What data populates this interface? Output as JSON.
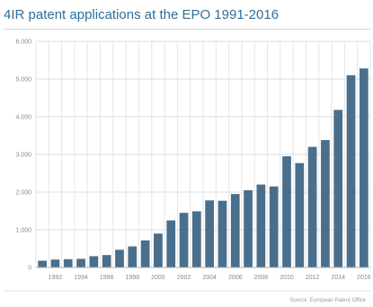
{
  "chart_data": {
    "type": "bar",
    "title": "4IR patent applications at the EPO 1991-2016",
    "source": "Source: European Patent Office",
    "categories": [
      1991,
      1992,
      1993,
      1994,
      1995,
      1996,
      1997,
      1998,
      1999,
      2000,
      2001,
      2002,
      2003,
      2004,
      2005,
      2006,
      2007,
      2008,
      2009,
      2010,
      2011,
      2012,
      2013,
      2014,
      2015,
      2016
    ],
    "values": [
      180,
      210,
      220,
      230,
      300,
      330,
      470,
      560,
      720,
      900,
      1250,
      1450,
      1490,
      1780,
      1770,
      1950,
      2050,
      2200,
      2150,
      2950,
      2770,
      3200,
      3380,
      4180,
      5100,
      5280
    ],
    "xticks": [
      "1992",
      "1994",
      "1996",
      "1998",
      "2000",
      "2002",
      "2004",
      "2006",
      "2008",
      "2010",
      "2012",
      "2014",
      "2016"
    ],
    "yticks": [
      "0",
      "1.000",
      "2.000",
      "3.000",
      "4.000",
      "5.000",
      "6.000"
    ],
    "ylim": [
      0,
      6000
    ],
    "grid": true,
    "bar_color": "#4a6f8c"
  }
}
